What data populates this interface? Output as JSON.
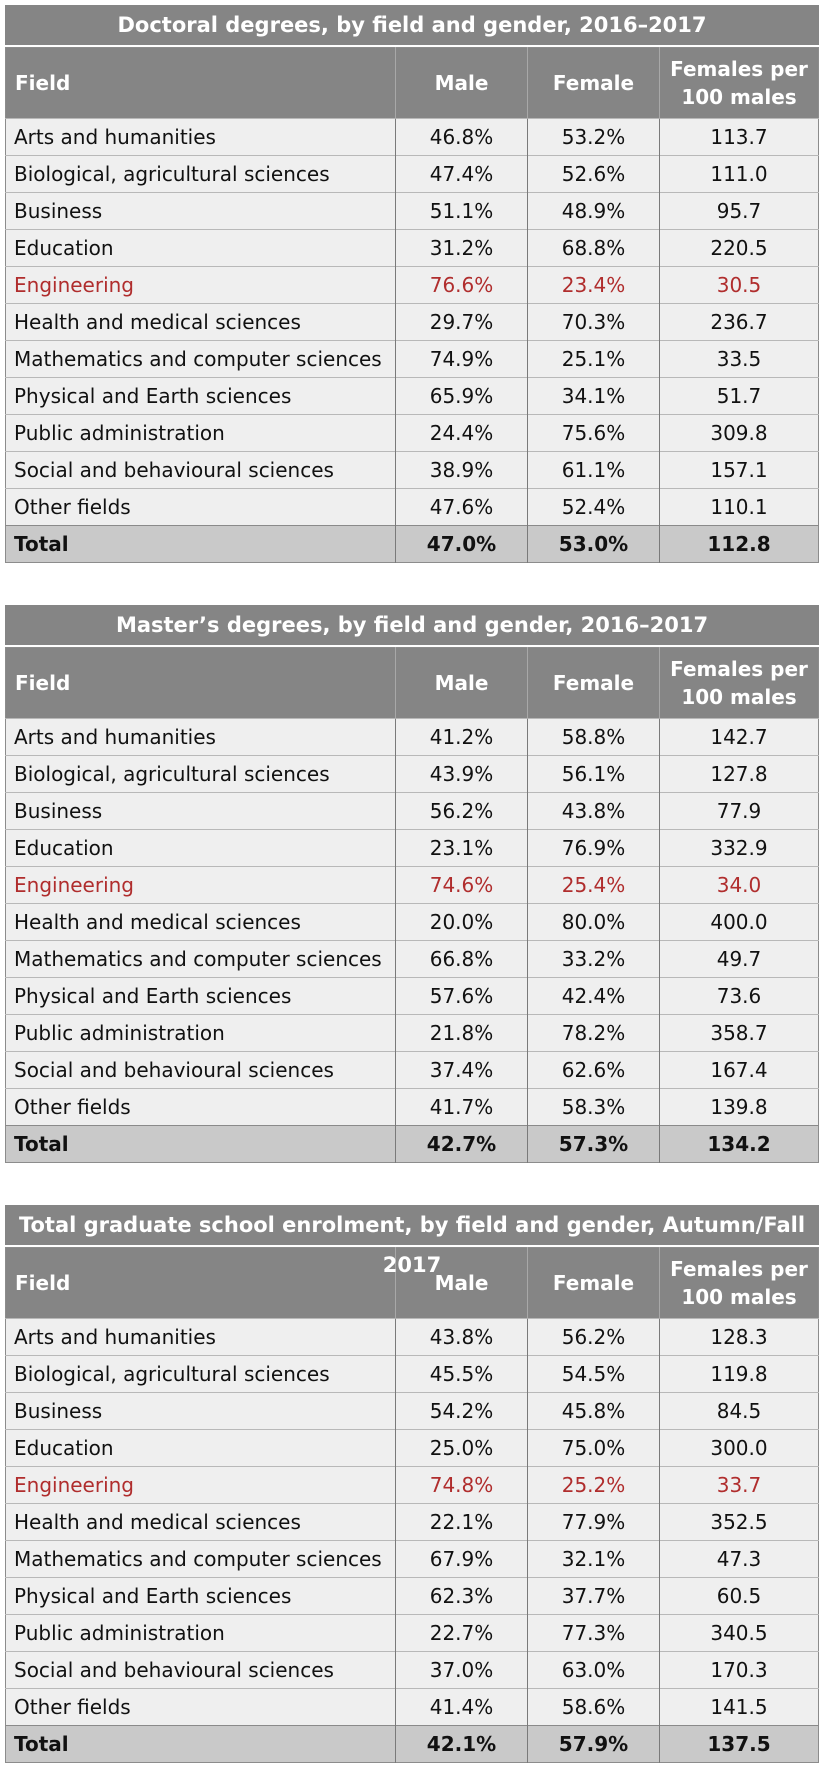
{
  "columns": {
    "field": "Field",
    "male": "Male",
    "female": "Female",
    "ratio": "Females per 100 males"
  },
  "colors": {
    "header_bg": "#858585",
    "row_bg": "#efefef",
    "total_bg": "#c9c9c9",
    "highlight_text": "#b02d2d"
  },
  "tables": [
    {
      "title": "Doctoral degrees, by field and gender, 2016–2017",
      "rows": [
        {
          "field": "Arts and humanities",
          "male": "46.8%",
          "female": "53.2%",
          "ratio": "113.7"
        },
        {
          "field": "Biological, agricultural sciences",
          "male": "47.4%",
          "female": "52.6%",
          "ratio": "111.0"
        },
        {
          "field": "Business",
          "male": "51.1%",
          "female": "48.9%",
          "ratio": "95.7"
        },
        {
          "field": "Education",
          "male": "31.2%",
          "female": "68.8%",
          "ratio": "220.5"
        },
        {
          "field": "Engineering",
          "male": "76.6%",
          "female": "23.4%",
          "ratio": "30.5",
          "highlight": true
        },
        {
          "field": "Health and medical sciences",
          "male": "29.7%",
          "female": "70.3%",
          "ratio": "236.7"
        },
        {
          "field": "Mathematics and computer sciences",
          "male": "74.9%",
          "female": "25.1%",
          "ratio": "33.5"
        },
        {
          "field": "Physical and Earth sciences",
          "male": "65.9%",
          "female": "34.1%",
          "ratio": "51.7"
        },
        {
          "field": "Public administration",
          "male": "24.4%",
          "female": "75.6%",
          "ratio": "309.8"
        },
        {
          "field": "Social and behavioural sciences",
          "male": "38.9%",
          "female": "61.1%",
          "ratio": "157.1"
        },
        {
          "field": "Other fields",
          "male": "47.6%",
          "female": "52.4%",
          "ratio": "110.1"
        }
      ],
      "total": {
        "field": "Total",
        "male": "47.0%",
        "female": "53.0%",
        "ratio": "112.8"
      }
    },
    {
      "title": "Master’s degrees, by field and gender, 2016–2017",
      "rows": [
        {
          "field": "Arts and humanities",
          "male": "41.2%",
          "female": "58.8%",
          "ratio": "142.7"
        },
        {
          "field": "Biological, agricultural sciences",
          "male": "43.9%",
          "female": "56.1%",
          "ratio": "127.8"
        },
        {
          "field": "Business",
          "male": "56.2%",
          "female": "43.8%",
          "ratio": "77.9"
        },
        {
          "field": "Education",
          "male": "23.1%",
          "female": "76.9%",
          "ratio": "332.9"
        },
        {
          "field": "Engineering",
          "male": "74.6%",
          "female": "25.4%",
          "ratio": "34.0",
          "highlight": true
        },
        {
          "field": "Health and medical sciences",
          "male": "20.0%",
          "female": "80.0%",
          "ratio": "400.0"
        },
        {
          "field": "Mathematics and computer sciences",
          "male": "66.8%",
          "female": "33.2%",
          "ratio": "49.7"
        },
        {
          "field": "Physical and Earth sciences",
          "male": "57.6%",
          "female": "42.4%",
          "ratio": "73.6"
        },
        {
          "field": "Public administration",
          "male": "21.8%",
          "female": "78.2%",
          "ratio": "358.7"
        },
        {
          "field": "Social and behavioural sciences",
          "male": "37.4%",
          "female": "62.6%",
          "ratio": "167.4"
        },
        {
          "field": "Other fields",
          "male": "41.7%",
          "female": "58.3%",
          "ratio": "139.8"
        }
      ],
      "total": {
        "field": "Total",
        "male": "42.7%",
        "female": "57.3%",
        "ratio": "134.2"
      }
    },
    {
      "title": "Total graduate school enrolment, by field and gender, Autumn/Fall 2017",
      "rows": [
        {
          "field": "Arts and humanities",
          "male": "43.8%",
          "female": "56.2%",
          "ratio": "128.3"
        },
        {
          "field": "Biological, agricultural sciences",
          "male": "45.5%",
          "female": "54.5%",
          "ratio": "119.8"
        },
        {
          "field": "Business",
          "male": "54.2%",
          "female": "45.8%",
          "ratio": "84.5"
        },
        {
          "field": "Education",
          "male": "25.0%",
          "female": "75.0%",
          "ratio": "300.0"
        },
        {
          "field": "Engineering",
          "male": "74.8%",
          "female": "25.2%",
          "ratio": "33.7",
          "highlight": true
        },
        {
          "field": "Health and medical sciences",
          "male": "22.1%",
          "female": "77.9%",
          "ratio": "352.5"
        },
        {
          "field": "Mathematics and computer sciences",
          "male": "67.9%",
          "female": "32.1%",
          "ratio": "47.3"
        },
        {
          "field": "Physical and Earth sciences",
          "male": "62.3%",
          "female": "37.7%",
          "ratio": "60.5"
        },
        {
          "field": "Public administration",
          "male": "22.7%",
          "female": "77.3%",
          "ratio": "340.5"
        },
        {
          "field": "Social and behavioural sciences",
          "male": "37.0%",
          "female": "63.0%",
          "ratio": "170.3"
        },
        {
          "field": "Other fields",
          "male": "41.4%",
          "female": "58.6%",
          "ratio": "141.5"
        }
      ],
      "total": {
        "field": "Total",
        "male": "42.1%",
        "female": "57.9%",
        "ratio": "137.5"
      }
    }
  ]
}
